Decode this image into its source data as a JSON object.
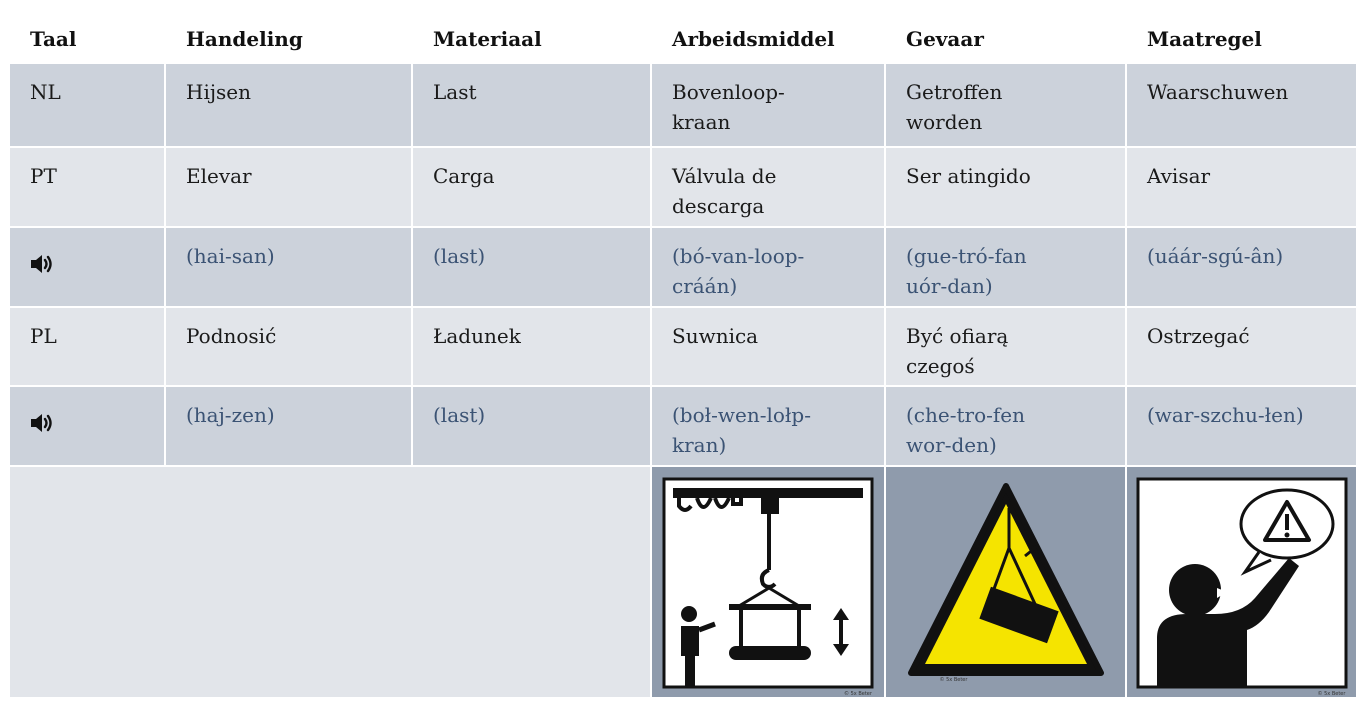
{
  "table": {
    "header": [
      "Taal",
      "Handeling",
      "Materiaal",
      "Arbeidsmiddel",
      "Gevaar",
      "Maatregel"
    ],
    "rows": [
      {
        "label": "NL",
        "cells": [
          "Hijsen",
          "Last",
          "Bovenloop-\nkraan",
          "Getroffen\nworden",
          "Waarschuwen"
        ]
      },
      {
        "label": "PT",
        "cells": [
          "Elevar",
          "Carga",
          "Válvula de\ndescarga",
          "Ser atingido",
          "Avisar"
        ]
      },
      {
        "audio": true,
        "cells": [
          "(hai-san)",
          "(last)",
          "(bó-van-loop-\ncráán)",
          "(gue-tró-fan\nuór-dan)",
          "(uáár-sgú-ân)"
        ]
      },
      {
        "label": "PL",
        "cells": [
          "Podnosić",
          "Ładunek",
          "Suwnica",
          "Być ofiarą\nczegoś",
          "Ostrzegać"
        ]
      },
      {
        "audio": true,
        "cells": [
          "(haj-zen)",
          "(last)",
          "(boł-wen-lołp-\nkran)",
          "(che-tro-fen\nwor-den)",
          "(war-szchu-łen)"
        ]
      }
    ],
    "pictograms": [
      {
        "credit": "© 5x Beter"
      },
      {
        "credit": "© 5x Beter"
      },
      {
        "credit": "© 5x Beter"
      }
    ]
  }
}
